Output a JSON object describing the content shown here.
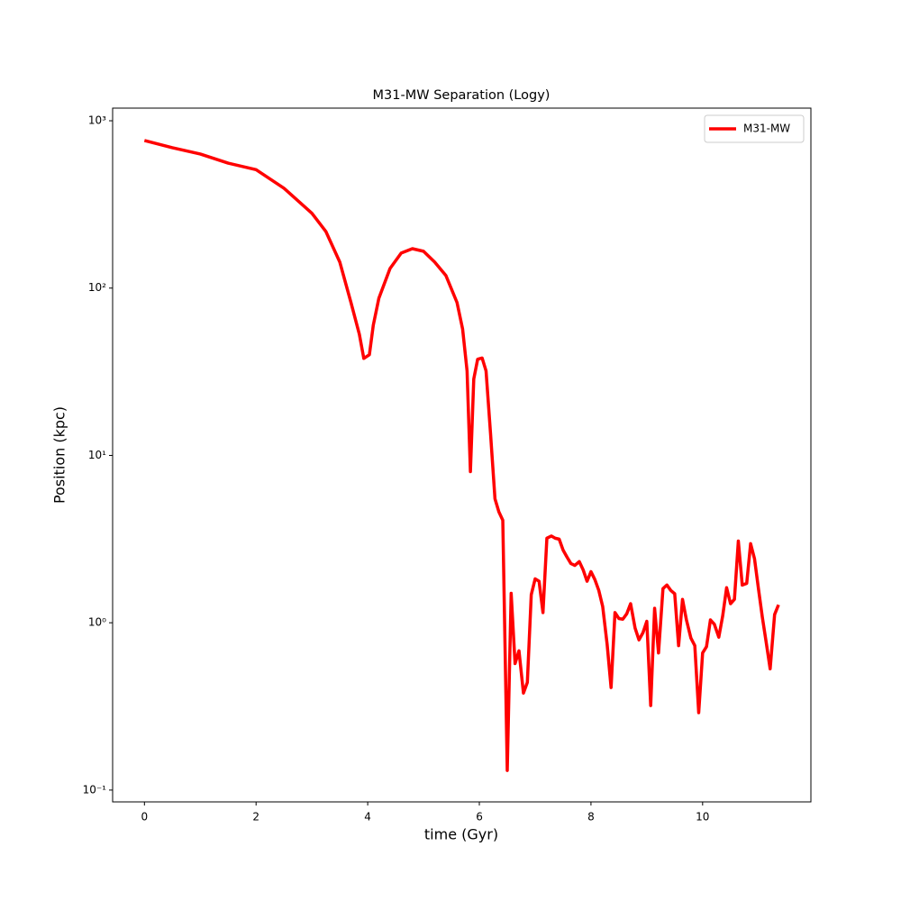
{
  "chart_data": {
    "type": "line",
    "title": "M31-MW Separation (Logy)",
    "x_label": "time (Gyr)",
    "y_label": "Position (kpc)",
    "log_y": true,
    "legend": "upper right",
    "xlim": [
      -0.57,
      11.94
    ],
    "xticks": [
      0,
      2,
      4,
      6,
      8,
      10
    ],
    "ylim": [
      0.085,
      1190
    ],
    "yticks": [
      {
        "value": 0.1,
        "label": "10⁻¹"
      },
      {
        "value": 1,
        "label": "10⁰"
      },
      {
        "value": 10,
        "label": "10¹"
      },
      {
        "value": 100,
        "label": "10²"
      },
      {
        "value": 1000,
        "label": "10³"
      }
    ],
    "x": [
      0,
      0.5,
      1,
      1.5,
      2,
      2.5,
      3,
      3.25,
      3.5,
      3.7,
      3.85,
      3.93,
      4.03,
      4.1,
      4.2,
      4.4,
      4.6,
      4.8,
      5.0,
      5.2,
      5.4,
      5.6,
      5.7,
      5.78,
      5.84,
      5.9,
      5.97,
      6.05,
      6.12,
      6.2,
      6.28,
      6.35,
      6.42,
      6.5,
      6.57,
      6.64,
      6.71,
      6.79,
      6.86,
      6.93,
      7.0,
      7.07,
      7.14,
      7.21,
      7.29,
      7.36,
      7.43,
      7.5,
      7.57,
      7.64,
      7.71,
      7.79,
      7.86,
      7.93,
      8.0,
      8.07,
      8.14,
      8.21,
      8.29,
      8.36,
      8.43,
      8.5,
      8.57,
      8.64,
      8.71,
      8.79,
      8.86,
      8.93,
      9.0,
      9.07,
      9.14,
      9.21,
      9.29,
      9.36,
      9.43,
      9.5,
      9.57,
      9.64,
      9.71,
      9.79,
      9.86,
      9.93,
      10.0,
      10.07,
      10.14,
      10.21,
      10.29,
      10.36,
      10.43,
      10.5,
      10.57,
      10.64,
      10.71,
      10.79,
      10.86,
      10.93,
      11.0,
      11.07,
      11.14,
      11.21,
      11.29,
      11.36
    ],
    "series": [
      {
        "name": "M31-MW",
        "color": "#ff0000",
        "values": [
          762,
          690,
          633,
          558,
          510,
          395,
          280,
          218,
          143,
          82,
          53,
          38,
          40,
          60,
          87,
          131,
          162,
          172,
          166,
          143,
          119,
          82,
          57,
          32,
          8.0,
          28.6,
          37.6,
          38.2,
          32,
          13.6,
          5.5,
          4.6,
          4.1,
          0.131,
          1.5,
          0.57,
          0.68,
          0.38,
          0.44,
          1.47,
          1.83,
          1.77,
          1.15,
          3.2,
          3.3,
          3.2,
          3.16,
          2.72,
          2.47,
          2.26,
          2.2,
          2.32,
          2.07,
          1.77,
          2.02,
          1.81,
          1.56,
          1.25,
          0.74,
          0.41,
          1.15,
          1.06,
          1.05,
          1.13,
          1.3,
          0.93,
          0.79,
          0.87,
          1.02,
          0.32,
          1.22,
          0.66,
          1.6,
          1.68,
          1.56,
          1.49,
          0.73,
          1.38,
          1.04,
          0.81,
          0.73,
          0.29,
          0.66,
          0.72,
          1.04,
          0.98,
          0.82,
          1.1,
          1.62,
          1.3,
          1.38,
          3.08,
          1.68,
          1.72,
          2.97,
          2.41,
          1.6,
          1.08,
          0.76,
          0.53,
          1.12,
          1.28
        ]
      }
    ]
  }
}
